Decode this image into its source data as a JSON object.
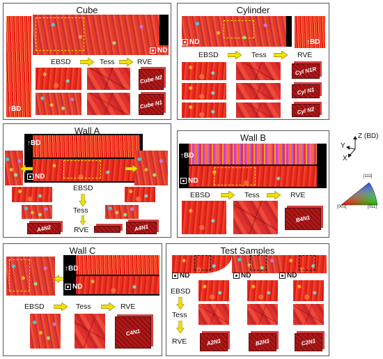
{
  "panels": {
    "cube": {
      "title": "Cube",
      "ebsd": "EBSD",
      "tess": "Tess",
      "rve": "RVE",
      "nd": "ND",
      "bd": "BD",
      "rve1": "Cube N2",
      "rve2": "Cube N1"
    },
    "cylinder": {
      "title": "Cylinder",
      "ebsd": "EBSD",
      "tess": "Tess",
      "rve": "RVE",
      "nd": "ND",
      "bd": "BD",
      "rve1": "Cyl N1R",
      "rve2": "Cyl N1",
      "rve3": "Cyl N2"
    },
    "wall_a": {
      "title": "Wall A",
      "ebsd": "EBSD",
      "tess": "Tess",
      "rve": "RVE",
      "nd": "ND",
      "bd": "BD",
      "rve1": "A4N2",
      "rve2": "A4N1"
    },
    "wall_b": {
      "title": "Wall B",
      "ebsd": "EBSD",
      "tess": "Tess",
      "rve": "RVE",
      "nd": "ND",
      "bd": "BD",
      "rve1": "B4N1"
    },
    "wall_c": {
      "title": "Wall C",
      "ebsd": "EBSD",
      "tess": "Tess",
      "rve": "RVE",
      "nd": "ND",
      "bd": "BD",
      "rve1": "C4N1"
    },
    "test": {
      "title": "Test Samples",
      "ebsd": "EBSD",
      "tess": "Tess",
      "rve": "RVE",
      "nd": "ND",
      "rve1": "A2N1",
      "rve2": "B2N1",
      "rve3": "C2N1"
    }
  },
  "axes": {
    "z": "Z",
    "z_sub": "(BD)",
    "y": "Y",
    "x": "X"
  },
  "ipf": {
    "top": "[111]",
    "left": "[001]",
    "right": "[011]"
  },
  "colors": {
    "arrow": "#f2e100",
    "border": "#555555"
  }
}
